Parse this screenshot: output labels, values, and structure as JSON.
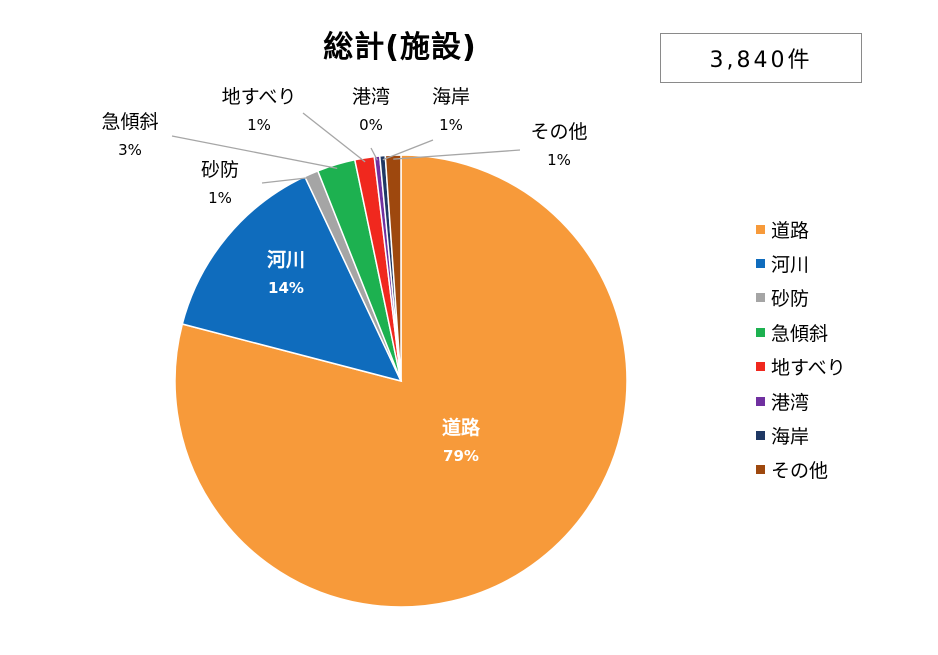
{
  "chart_data": {
    "type": "pie",
    "title": "総計(施設)",
    "total_label": "3,840件",
    "slices": [
      {
        "label": "道路",
        "value": 79,
        "pct_label": "79%",
        "color": "#F79A3A"
      },
      {
        "label": "河川",
        "value": 14,
        "pct_label": "14%",
        "color": "#0F6CBD"
      },
      {
        "label": "砂防",
        "value": 1,
        "pct_label": "1%",
        "color": "#A5A5A5"
      },
      {
        "label": "急傾斜",
        "value": 3,
        "pct_label": "3%",
        "color": "#1DB150"
      },
      {
        "label": "地すべり",
        "value": 1,
        "pct_label": "1%",
        "color": "#F0281E"
      },
      {
        "label": "港湾",
        "value": 0,
        "pct_label": "0%",
        "color": "#7030A0"
      },
      {
        "label": "海岸",
        "value": 1,
        "pct_label": "1%",
        "color": "#1F3864"
      },
      {
        "label": "その他",
        "value": 1,
        "pct_label": "1%",
        "color": "#9E480E"
      }
    ],
    "legend_position": "right"
  }
}
